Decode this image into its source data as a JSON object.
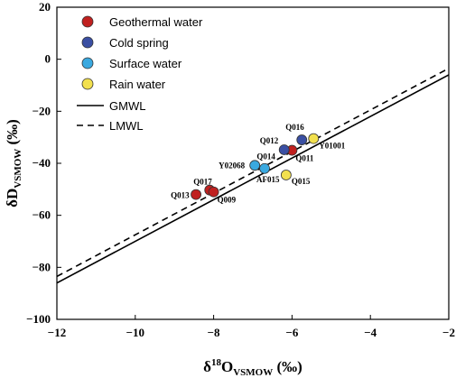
{
  "chart_data": {
    "type": "scatter",
    "xlabel_prefix": "δ",
    "xlabel_sup": "18",
    "xlabel_main": "O",
    "xlabel_sub": "VSMOW",
    "xlabel_unit": " (‰)",
    "ylabel_main": "δD",
    "ylabel_sub": "VSMOW",
    "ylabel_unit": " (‰)",
    "xlim": [
      -12,
      -2
    ],
    "ylim": [
      -100,
      20
    ],
    "xticks": [
      -12,
      -10,
      -8,
      -6,
      -4,
      -2
    ],
    "yticks": [
      20,
      0,
      -20,
      -40,
      -60,
      -80,
      -100
    ],
    "series": [
      {
        "name": "Geothermal water",
        "color": "#c0201f",
        "points": [
          {
            "x": -8.45,
            "y": -52.0,
            "label": "Q013"
          },
          {
            "x": -8.1,
            "y": -50.3,
            "label": "Q017"
          },
          {
            "x": -8.0,
            "y": -51.0,
            "label": "Q009"
          },
          {
            "x": -6.0,
            "y": -35.0,
            "label": "Q011"
          }
        ]
      },
      {
        "name": "Cold spring",
        "color": "#3a4fa3",
        "points": [
          {
            "x": -6.2,
            "y": -34.8,
            "label": "Q012"
          },
          {
            "x": -5.75,
            "y": -31.0,
            "label": "Q016"
          }
        ]
      },
      {
        "name": "Surface water",
        "color": "#3aa9e0",
        "points": [
          {
            "x": -6.95,
            "y": -40.8,
            "label": "Y02068"
          },
          {
            "x": -6.7,
            "y": -42.0,
            "label": "AF015"
          }
        ]
      },
      {
        "name": "Rain water",
        "color": "#f2e04e",
        "points": [
          {
            "x": -6.15,
            "y": -44.5,
            "label": "Q015"
          },
          {
            "x": -5.45,
            "y": -30.5,
            "label": "Y01001"
          }
        ]
      }
    ],
    "annotations": [
      {
        "text": "Q014",
        "x": -6.9,
        "y": -38.5
      }
    ],
    "lines": [
      {
        "name": "GMWL",
        "style": "solid",
        "slope": 8,
        "intercept": 10
      },
      {
        "name": "LMWL",
        "style": "dashed",
        "slope": 8,
        "intercept": 12.5
      }
    ],
    "legend_position": "top-left",
    "grid": false
  }
}
